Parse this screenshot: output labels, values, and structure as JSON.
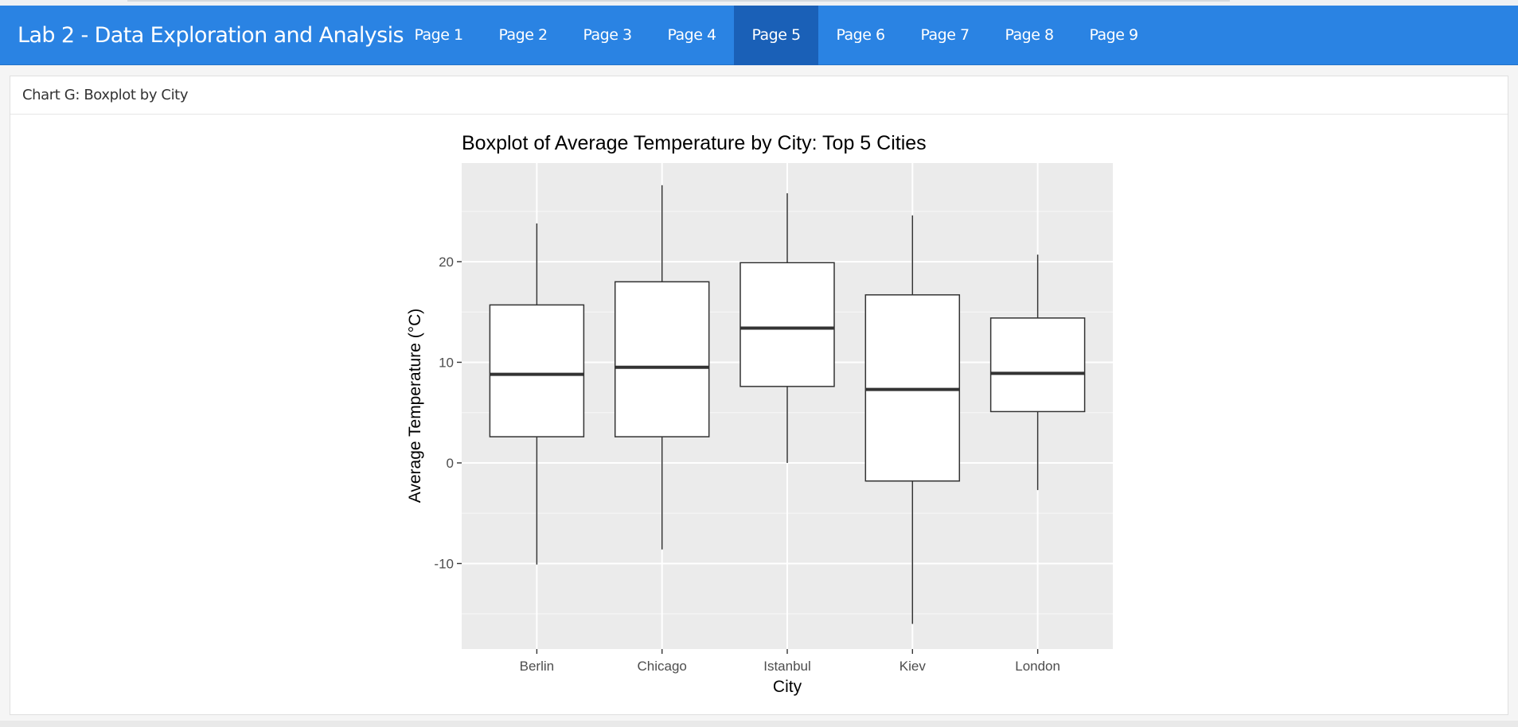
{
  "app": {
    "title": "Lab 2 - Data Exploration and Analysis",
    "tabs": [
      {
        "label": "Page 1",
        "active": false
      },
      {
        "label": "Page 2",
        "active": false
      },
      {
        "label": "Page 3",
        "active": false
      },
      {
        "label": "Page 4",
        "active": false
      },
      {
        "label": "Page 5",
        "active": true
      },
      {
        "label": "Page 6",
        "active": false
      },
      {
        "label": "Page 7",
        "active": false
      },
      {
        "label": "Page 8",
        "active": false
      },
      {
        "label": "Page 9",
        "active": false
      }
    ]
  },
  "panel": {
    "title": "Chart G: Boxplot by City"
  },
  "colors": {
    "navbar": "#2a83e3",
    "navbar_active": "#1a60b7",
    "plot_background": "#ebebeb",
    "box_fill": "#ffffff",
    "box_stroke": "#333333"
  },
  "chart_data": {
    "type": "boxplot",
    "title": "Boxplot of Average Temperature by City: Top 5 Cities",
    "xlabel": "City",
    "ylabel": "Average Temperature (°C)",
    "ylim": [
      -18.5,
      29.8
    ],
    "yticks": [
      -10,
      0,
      10,
      20
    ],
    "grid": true,
    "categories": [
      "Berlin",
      "Chicago",
      "Istanbul",
      "Kiev",
      "London"
    ],
    "boxes": [
      {
        "name": "Berlin",
        "min": -10.1,
        "q1": 2.6,
        "median": 8.8,
        "q3": 15.7,
        "max": 23.8
      },
      {
        "name": "Chicago",
        "min": -8.6,
        "q1": 2.6,
        "median": 9.5,
        "q3": 18.0,
        "max": 27.6
      },
      {
        "name": "Istanbul",
        "min": 0.0,
        "q1": 7.6,
        "median": 13.4,
        "q3": 19.9,
        "max": 26.8
      },
      {
        "name": "Kiev",
        "min": -16.0,
        "q1": -1.8,
        "median": 7.3,
        "q3": 16.7,
        "max": 24.6
      },
      {
        "name": "London",
        "min": -2.7,
        "q1": 5.1,
        "median": 8.9,
        "q3": 14.4,
        "max": 20.7
      }
    ]
  }
}
